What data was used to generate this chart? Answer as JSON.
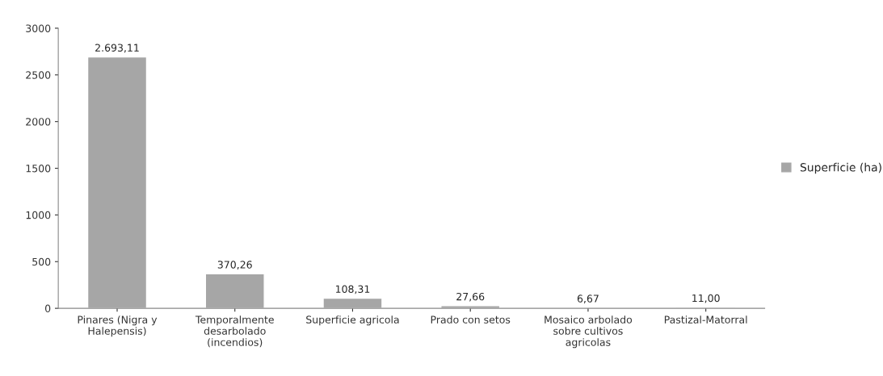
{
  "chart_data": {
    "type": "bar",
    "categories": [
      "Pinares (Nigra y Halepensis)",
      "Temporalmente desarbolado (incendios)",
      "Superficie agricola",
      "Prado con setos",
      "Mosaico arbolado sobre cultivos agricolas",
      "Pastizal-Matorral"
    ],
    "series": [
      {
        "name": "Superficie (ha)",
        "color": "#a6a6a6",
        "values": [
          2693.11,
          370.26,
          108.31,
          27.66,
          6.67,
          11.0
        ],
        "value_labels": [
          "2.693,11",
          "370,26",
          "108,31",
          "27,66",
          "6,67",
          "11,00"
        ]
      }
    ],
    "ylim": [
      0,
      3000
    ],
    "yticks": [
      0,
      500,
      1000,
      1500,
      2000,
      2500,
      3000
    ],
    "grid": false,
    "legend": "right"
  }
}
